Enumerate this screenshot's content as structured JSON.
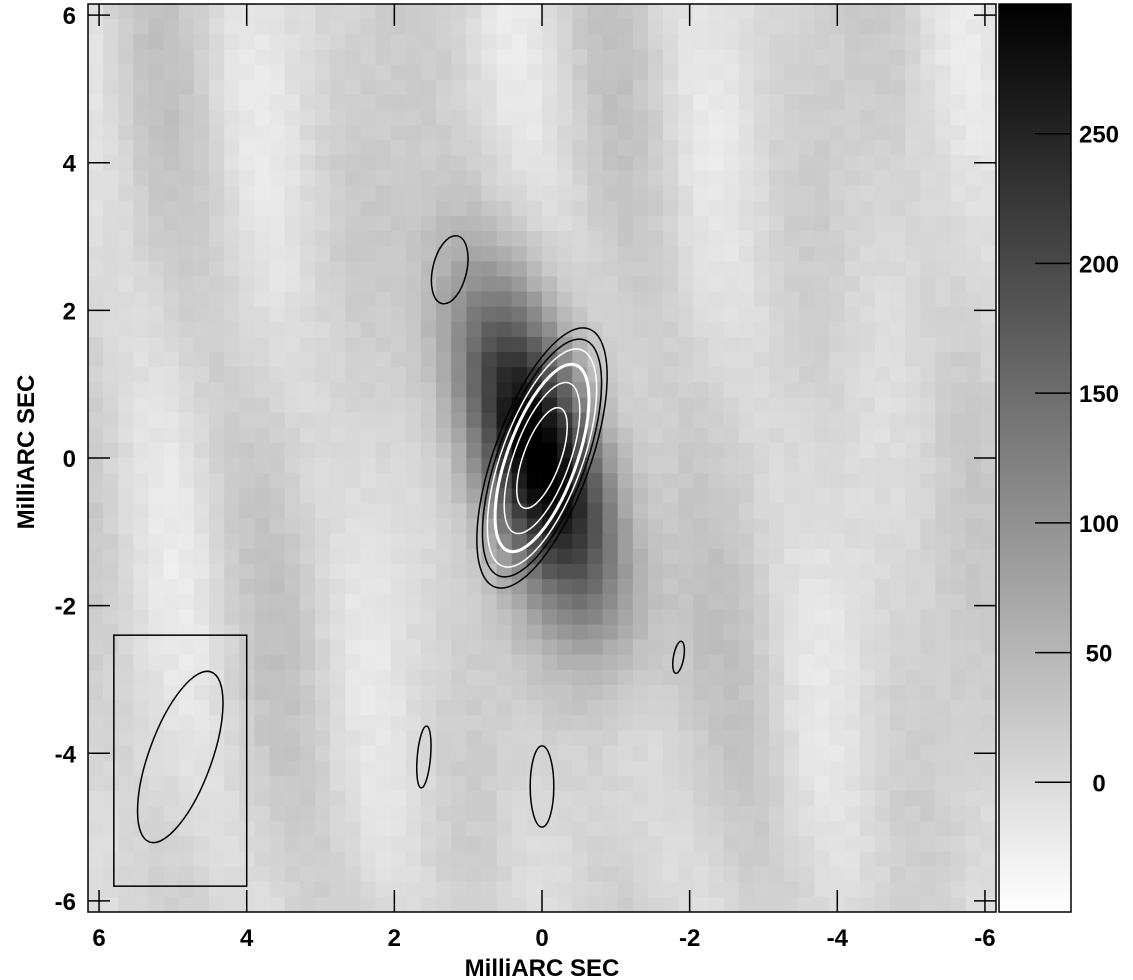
{
  "chart_data": {
    "type": "heatmap",
    "title": "",
    "xlabel": "MilliARC SEC",
    "ylabel": "MilliARC SEC",
    "xlim": [
      6.15,
      -6.15
    ],
    "ylim": [
      -6.15,
      6.15
    ],
    "x_ticks": [
      6,
      4,
      2,
      0,
      -2,
      -4,
      -6
    ],
    "x_tick_labels": [
      "6",
      "4",
      "2",
      "0",
      "-2",
      "-4",
      "-6"
    ],
    "y_ticks": [
      6,
      4,
      2,
      0,
      -2,
      -4,
      -6
    ],
    "y_tick_labels": [
      "6",
      "4",
      "2",
      "0",
      "-2",
      "-4",
      "-6"
    ],
    "colorbar": {
      "range": [
        -50,
        300
      ],
      "ticks": [
        0,
        50,
        100,
        150,
        200,
        250
      ],
      "tick_labels": [
        "0",
        "50",
        "100",
        "150",
        "200",
        "250"
      ],
      "colormap": "grayscale (white = low, black = high)"
    },
    "source": {
      "x": 0.0,
      "y": 0.0,
      "peak": 300,
      "major_axis": 4.0,
      "minor_axis": 1.4,
      "position_angle_deg": 20
    },
    "contours": [
      {
        "type": "main_source",
        "color": "#000000",
        "levels": [
          0.93,
          0.85
        ]
      },
      {
        "type": "main_source",
        "color": "#ffffff",
        "levels": [
          0.78,
          0.67,
          0.54,
          0.36
        ]
      },
      {
        "type": "blob",
        "color": "#000000",
        "x": 1.25,
        "y": 2.55,
        "rx": 0.23,
        "ry": 0.47,
        "angle": 13
      },
      {
        "type": "blob",
        "color": "#000000",
        "x": -1.85,
        "y": -2.7,
        "rx": 0.07,
        "ry": 0.22,
        "angle": 10
      },
      {
        "type": "blob",
        "color": "#000000",
        "x": 1.6,
        "y": -4.05,
        "rx": 0.09,
        "ry": 0.42,
        "angle": 5
      },
      {
        "type": "blob",
        "color": "#000000",
        "x": 0.0,
        "y": -4.45,
        "rx": 0.16,
        "ry": 0.55,
        "angle": 0
      }
    ],
    "beam": {
      "x": 4.9,
      "y": -4.05,
      "major": 2.45,
      "minor": 0.85,
      "position_angle_deg": 20
    },
    "grid": false
  }
}
